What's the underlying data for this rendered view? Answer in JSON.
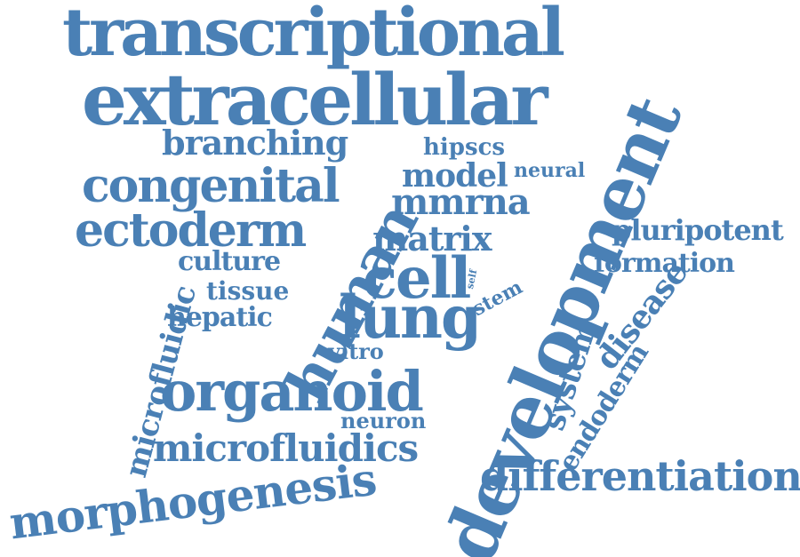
{
  "colors": {
    "word": "#4a80b5",
    "background": "#ffffff"
  },
  "words": {
    "transcriptional": "transcriptional",
    "extracellular": "extracellular",
    "branching": "branching",
    "hipscs": "hipscs",
    "model": "model",
    "neural": "neural",
    "congenital": "congenital",
    "mmrna": "mmrna",
    "ectoderm": "ectoderm",
    "matrix": "matrix",
    "pluripotent": "pluripotent",
    "culture": "culture",
    "formation": "formation",
    "cell": "cell",
    "self": "self",
    "stem": "stem",
    "tissue": "tissue",
    "lung": "lung",
    "hepatic": "hepatic",
    "disease": "disease",
    "vitro": "vitro",
    "system": "system",
    "organoid": "organoid",
    "endoderm": "endoderm",
    "neuron": "neuron",
    "microfluidic": "microfluidic",
    "microfluidics": "microfluidics",
    "human": "human",
    "development": "development",
    "differentiation": "differentiation",
    "morphogenesis": "morphogenesis"
  }
}
